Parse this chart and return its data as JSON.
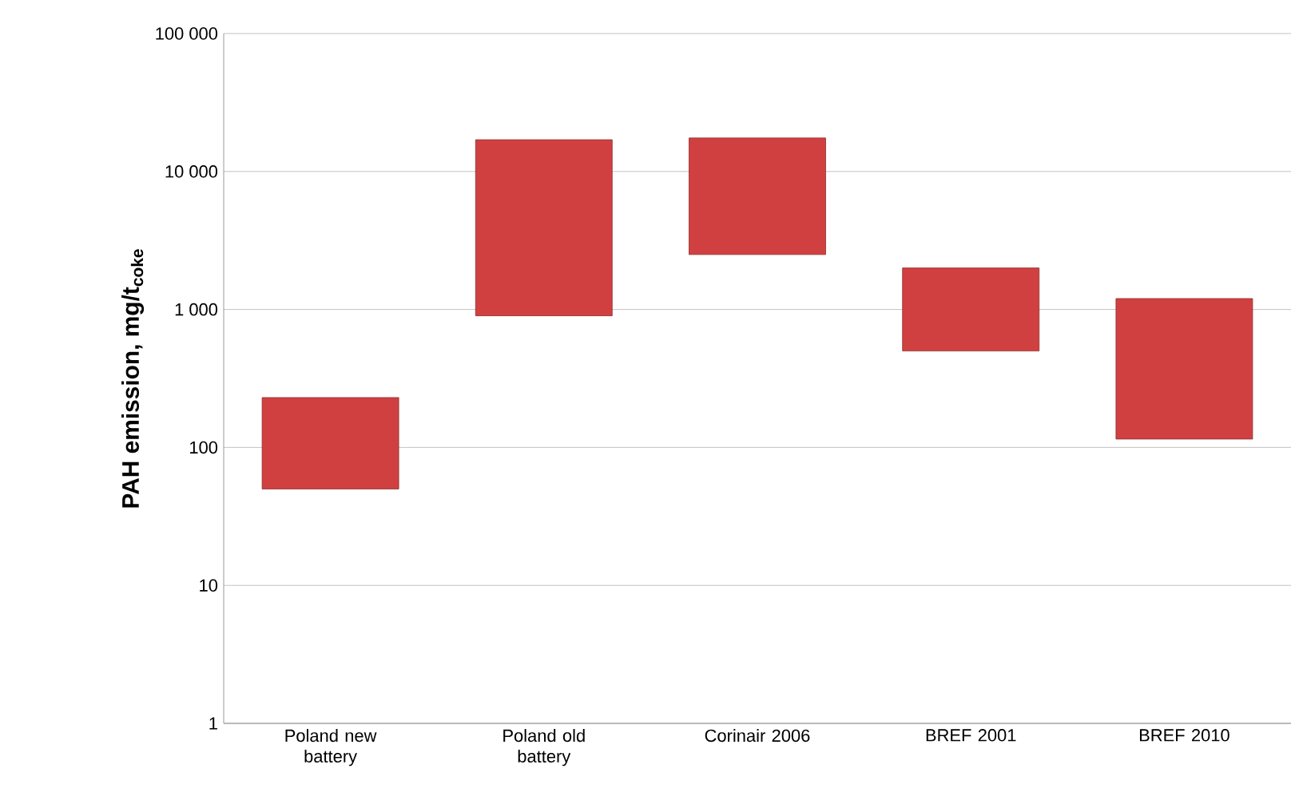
{
  "chart_data": {
    "type": "bar",
    "ylabel": "PAH emission, mg/t$_{coke}$",
    "categories": [
      "Poland new battery",
      "Poland old battery",
      "Corinair 2006",
      "BREF 2001",
      "BREF 2010"
    ],
    "base": [
      50,
      900,
      2500,
      500,
      115
    ],
    "values": [
      180,
      16100,
      15000,
      1500,
      1085
    ],
    "color": "#d04040",
    "log": "y",
    "ylim": [
      1,
      100000
    ],
    "yticks": [
      1,
      10,
      100,
      {
        "value": 1000,
        "label": "1 000"
      },
      {
        "value": 10000,
        "label": "10 000"
      },
      {
        "value": 100000,
        "label": "100 000"
      }
    ],
    "grid": "y"
  }
}
